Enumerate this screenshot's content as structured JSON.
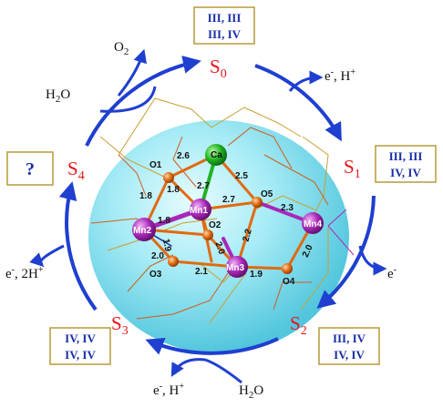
{
  "states": {
    "s0": {
      "base": "S",
      "sub": "0"
    },
    "s1": {
      "base": "S",
      "sub": "1"
    },
    "s2": {
      "base": "S",
      "sub": "2"
    },
    "s3": {
      "base": "S",
      "sub": "3"
    },
    "s4": {
      "base": "S",
      "sub": "4"
    }
  },
  "oxidation_boxes": {
    "s0": [
      "III, III",
      "III, IV"
    ],
    "s1": [
      "III, III",
      "IV, IV"
    ],
    "s2": [
      "III, IV",
      "IV, IV"
    ],
    "s3": [
      "IV, IV",
      "IV, IV"
    ],
    "s4": "?"
  },
  "side_labels": {
    "o2_out": {
      "main": "O",
      "sub": "2"
    },
    "h2o_top": {
      "main": "H",
      "sub": "2",
      "tail": "O"
    },
    "s0_s1": {
      "main": "e",
      "sup1": "-",
      "mid": ", H",
      "sup2": "+"
    },
    "s1_s2": {
      "main": "e",
      "sup1": "-"
    },
    "s4_s0": {
      "main": "e",
      "sup1": "-",
      "mid": ", 2H",
      "sup2": "+"
    },
    "s2_s3": {
      "main": "e",
      "sup1": "-",
      "mid": ", H",
      "sup2": "+"
    },
    "h2o_bottom": {
      "main": "H",
      "sub": "2",
      "tail": "O"
    }
  },
  "atoms": {
    "ca": "Ca",
    "mn1": "Mn1",
    "mn2": "Mn2",
    "mn3": "Mn3",
    "mn4": "Mn4",
    "o1": "O1",
    "o2": "O2",
    "o3": "O3",
    "o4": "O4",
    "o5": "O5"
  },
  "bond_lengths": {
    "ca_o1": "2.6",
    "o1_mn1": "1.8",
    "ca_mn1": "2.7",
    "ca_o5": "2.5",
    "mn1_o5": "2.7",
    "o5_mn4": "2.3",
    "o1_mn2": "1.8",
    "mn2_mn1": "1.8",
    "mn2_o2": "1.9",
    "o2_mn3": "2.0",
    "o5_mn3": "2.2",
    "mn4_o4": "2.0",
    "mn2_o3": "2.0",
    "o3_mn3": "2.1",
    "mn3_o4": "1.9"
  },
  "colors": {
    "state": "#e8141a",
    "oxidation_text": "#1a2ea8",
    "box_border": "#b59a3a",
    "arrow": "#1f3fd0",
    "sphere": "#7fe0ee",
    "manganese": "#a828b8",
    "calcium": "#21b321",
    "oxygen": "#e06a10"
  }
}
